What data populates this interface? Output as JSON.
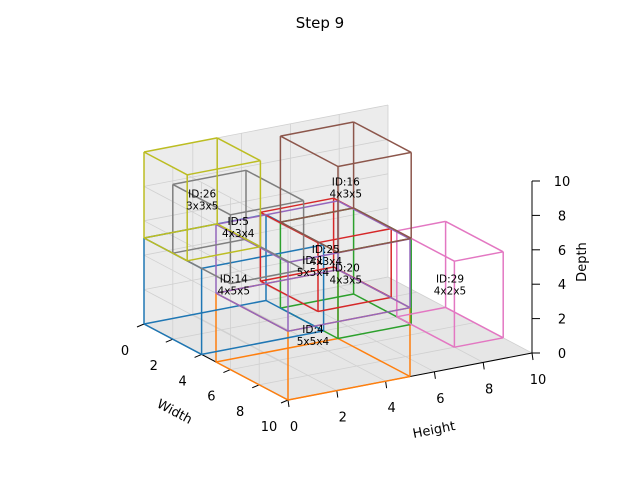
{
  "title": "Step 9",
  "chart_data": {
    "type": "3d-box-packing",
    "title": "Step 9",
    "axes": {
      "x": {
        "label": "Width",
        "range": [
          0,
          10
        ],
        "ticks": [
          "0",
          "2",
          "4",
          "6",
          "8",
          "10"
        ]
      },
      "y": {
        "label": "Height",
        "range": [
          0,
          10
        ],
        "ticks": [
          "0",
          "2",
          "4",
          "6",
          "8",
          "10"
        ]
      },
      "z": {
        "label": "Depth",
        "range": [
          0,
          10
        ],
        "ticks": [
          "0",
          "2",
          "4",
          "6",
          "8",
          "10"
        ]
      }
    },
    "grid": true,
    "boxes": [
      {
        "label": "ID:4\n5x5x4",
        "color": "#ff7f0e",
        "origin": [
          5,
          0,
          0
        ],
        "size": [
          5,
          5,
          4
        ]
      },
      {
        "label": "ID:20\n4x3x5",
        "color": "#2ca02c",
        "origin": [
          1,
          5,
          0
        ],
        "size": [
          4,
          3,
          5
        ]
      },
      {
        "label": "ID:14\n4x5x5",
        "color": "#1f77b4",
        "origin": [
          0,
          0,
          0
        ],
        "size": [
          4,
          5,
          5
        ]
      },
      {
        "label": "ID:29\n4x2x5",
        "color": "#e377c2",
        "origin": [
          4,
          8,
          0
        ],
        "size": [
          4,
          2,
          5
        ]
      },
      {
        "label": "ID:25\n4x3x4",
        "color": "#d62728",
        "origin": [
          3,
          3,
          3
        ],
        "size": [
          4,
          3,
          4
        ]
      },
      {
        "label": "ID:1\n5x5x4",
        "color": "#9467bd",
        "origin": [
          5,
          0,
          4
        ],
        "size": [
          5,
          5,
          4
        ]
      },
      {
        "label": "ID:5\n4x3x4",
        "color": "#7f7f7f",
        "origin": [
          2,
          0,
          5
        ],
        "size": [
          4,
          3,
          4
        ]
      },
      {
        "label": "ID:16\n4x3x5",
        "color": "#8c564b",
        "origin": [
          1,
          5,
          5
        ],
        "size": [
          4,
          3,
          5
        ]
      },
      {
        "label": "ID:26\n3x3x5",
        "color": "#bcbd22",
        "origin": [
          0,
          0,
          5
        ],
        "size": [
          3,
          3,
          5
        ]
      }
    ]
  }
}
